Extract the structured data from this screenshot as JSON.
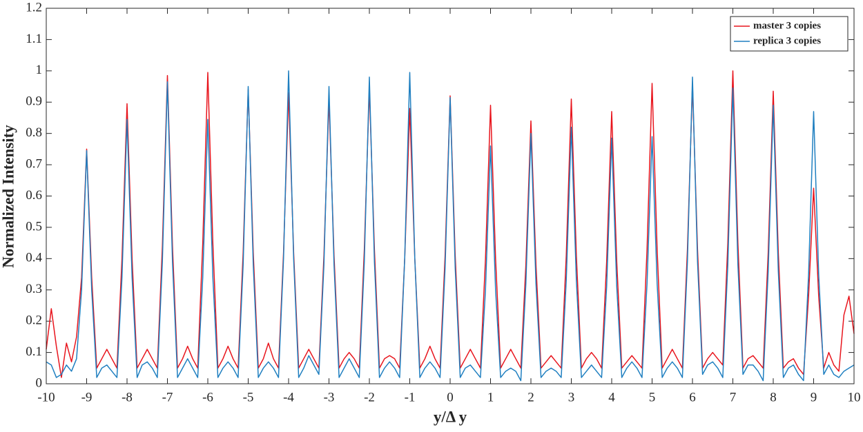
{
  "chart_data": {
    "type": "line",
    "xlabel": "y/Δ y",
    "ylabel": "Normalized Intensity",
    "xlim": [
      -10,
      10
    ],
    "ylim": [
      0,
      1.2
    ],
    "xticks": [
      -10,
      -9,
      -8,
      -7,
      -6,
      -5,
      -4,
      -3,
      -2,
      -1,
      0,
      1,
      2,
      3,
      4,
      5,
      6,
      7,
      8,
      9,
      10
    ],
    "yticks": [
      0,
      0.1,
      0.2,
      0.3,
      0.4,
      0.5,
      0.6,
      0.7,
      0.8,
      0.9,
      1,
      1.1,
      1.2
    ],
    "legend": "upper right",
    "x": [
      -10,
      -9.875,
      -9.75,
      -9.625,
      -9.5,
      -9.375,
      -9.25,
      -9.125,
      -9,
      -8.875,
      -8.75,
      -8.625,
      -8.5,
      -8.375,
      -8.25,
      -8.125,
      -8,
      -7.875,
      -7.75,
      -7.625,
      -7.5,
      -7.375,
      -7.25,
      -7.125,
      -7,
      -6.875,
      -6.75,
      -6.625,
      -6.5,
      -6.375,
      -6.25,
      -6.125,
      -6,
      -5.875,
      -5.75,
      -5.625,
      -5.5,
      -5.375,
      -5.25,
      -5.125,
      -5,
      -4.875,
      -4.75,
      -4.625,
      -4.5,
      -4.375,
      -4.25,
      -4.125,
      -4,
      -3.875,
      -3.75,
      -3.625,
      -3.5,
      -3.375,
      -3.25,
      -3.125,
      -3,
      -2.875,
      -2.75,
      -2.625,
      -2.5,
      -2.375,
      -2.25,
      -2.125,
      -2,
      -1.875,
      -1.75,
      -1.625,
      -1.5,
      -1.375,
      -1.25,
      -1.125,
      -1,
      -0.875,
      -0.75,
      -0.625,
      -0.5,
      -0.375,
      -0.25,
      -0.125,
      0,
      0.125,
      0.25,
      0.375,
      0.5,
      0.625,
      0.75,
      0.875,
      1,
      1.125,
      1.25,
      1.375,
      1.5,
      1.625,
      1.75,
      1.875,
      2,
      2.125,
      2.25,
      2.375,
      2.5,
      2.625,
      2.75,
      2.875,
      3,
      3.125,
      3.25,
      3.375,
      3.5,
      3.625,
      3.75,
      3.875,
      4,
      4.125,
      4.25,
      4.375,
      4.5,
      4.625,
      4.75,
      4.875,
      5,
      5.125,
      5.25,
      5.375,
      5.5,
      5.625,
      5.75,
      5.875,
      6,
      6.125,
      6.25,
      6.375,
      6.5,
      6.625,
      6.75,
      6.875,
      7,
      7.125,
      7.25,
      7.375,
      7.5,
      7.625,
      7.75,
      7.875,
      8,
      8.125,
      8.25,
      8.375,
      8.5,
      8.625,
      8.75,
      8.875,
      9,
      9.125,
      9.25,
      9.375,
      9.5,
      9.625,
      9.75,
      9.875,
      10
    ],
    "series": [
      {
        "name": "master 3 copies",
        "color": "#e8141c",
        "values": [
          0.11,
          0.24,
          0.12,
          0.02,
          0.13,
          0.07,
          0.15,
          0.34,
          0.75,
          0.34,
          0.05,
          0.08,
          0.11,
          0.08,
          0.05,
          0.4,
          0.895,
          0.4,
          0.05,
          0.08,
          0.11,
          0.08,
          0.05,
          0.44,
          0.985,
          0.44,
          0.05,
          0.08,
          0.12,
          0.08,
          0.05,
          0.45,
          0.995,
          0.45,
          0.05,
          0.08,
          0.12,
          0.08,
          0.05,
          0.42,
          0.94,
          0.42,
          0.05,
          0.08,
          0.13,
          0.08,
          0.05,
          0.42,
          0.93,
          0.42,
          0.05,
          0.08,
          0.11,
          0.08,
          0.05,
          0.41,
          0.91,
          0.41,
          0.05,
          0.08,
          0.1,
          0.08,
          0.05,
          0.43,
          0.945,
          0.43,
          0.05,
          0.08,
          0.09,
          0.08,
          0.05,
          0.4,
          0.88,
          0.4,
          0.05,
          0.08,
          0.12,
          0.08,
          0.05,
          0.41,
          0.92,
          0.41,
          0.05,
          0.08,
          0.11,
          0.08,
          0.05,
          0.4,
          0.89,
          0.4,
          0.05,
          0.08,
          0.11,
          0.08,
          0.05,
          0.38,
          0.84,
          0.38,
          0.05,
          0.07,
          0.09,
          0.07,
          0.05,
          0.41,
          0.91,
          0.41,
          0.05,
          0.08,
          0.1,
          0.08,
          0.05,
          0.39,
          0.87,
          0.39,
          0.05,
          0.07,
          0.09,
          0.07,
          0.05,
          0.43,
          0.96,
          0.43,
          0.05,
          0.08,
          0.11,
          0.08,
          0.05,
          0.43,
          0.955,
          0.43,
          0.05,
          0.08,
          0.1,
          0.08,
          0.06,
          0.45,
          1.0,
          0.45,
          0.05,
          0.08,
          0.09,
          0.07,
          0.05,
          0.42,
          0.935,
          0.42,
          0.05,
          0.07,
          0.08,
          0.05,
          0.03,
          0.28,
          0.625,
          0.28,
          0.05,
          0.1,
          0.06,
          0.04,
          0.22,
          0.28,
          0.16
        ]
      },
      {
        "name": "replica 3 copies",
        "color": "#1f7fc0",
        "values": [
          0.07,
          0.06,
          0.02,
          0.03,
          0.06,
          0.04,
          0.08,
          0.3,
          0.745,
          0.3,
          0.02,
          0.05,
          0.06,
          0.04,
          0.02,
          0.34,
          0.845,
          0.34,
          0.02,
          0.06,
          0.07,
          0.05,
          0.02,
          0.39,
          0.965,
          0.39,
          0.02,
          0.05,
          0.08,
          0.05,
          0.02,
          0.34,
          0.845,
          0.34,
          0.02,
          0.05,
          0.07,
          0.05,
          0.02,
          0.38,
          0.95,
          0.38,
          0.02,
          0.05,
          0.07,
          0.05,
          0.02,
          0.4,
          1.0,
          0.4,
          0.02,
          0.05,
          0.09,
          0.06,
          0.03,
          0.38,
          0.95,
          0.38,
          0.02,
          0.05,
          0.08,
          0.05,
          0.02,
          0.39,
          0.98,
          0.39,
          0.02,
          0.05,
          0.07,
          0.05,
          0.02,
          0.4,
          0.995,
          0.4,
          0.02,
          0.05,
          0.07,
          0.05,
          0.02,
          0.37,
          0.915,
          0.37,
          0.02,
          0.05,
          0.06,
          0.04,
          0.02,
          0.3,
          0.76,
          0.3,
          0.02,
          0.04,
          0.05,
          0.04,
          0.01,
          0.32,
          0.8,
          0.32,
          0.02,
          0.04,
          0.05,
          0.04,
          0.02,
          0.33,
          0.82,
          0.33,
          0.02,
          0.04,
          0.06,
          0.04,
          0.02,
          0.31,
          0.785,
          0.31,
          0.02,
          0.05,
          0.07,
          0.05,
          0.02,
          0.32,
          0.79,
          0.32,
          0.02,
          0.05,
          0.07,
          0.05,
          0.02,
          0.39,
          0.98,
          0.39,
          0.03,
          0.06,
          0.07,
          0.05,
          0.02,
          0.38,
          0.945,
          0.38,
          0.03,
          0.06,
          0.06,
          0.04,
          0.01,
          0.36,
          0.89,
          0.36,
          0.02,
          0.05,
          0.06,
          0.03,
          0.01,
          0.35,
          0.87,
          0.35,
          0.03,
          0.06,
          0.03,
          0.02,
          0.04,
          0.05,
          0.06
        ]
      }
    ]
  }
}
